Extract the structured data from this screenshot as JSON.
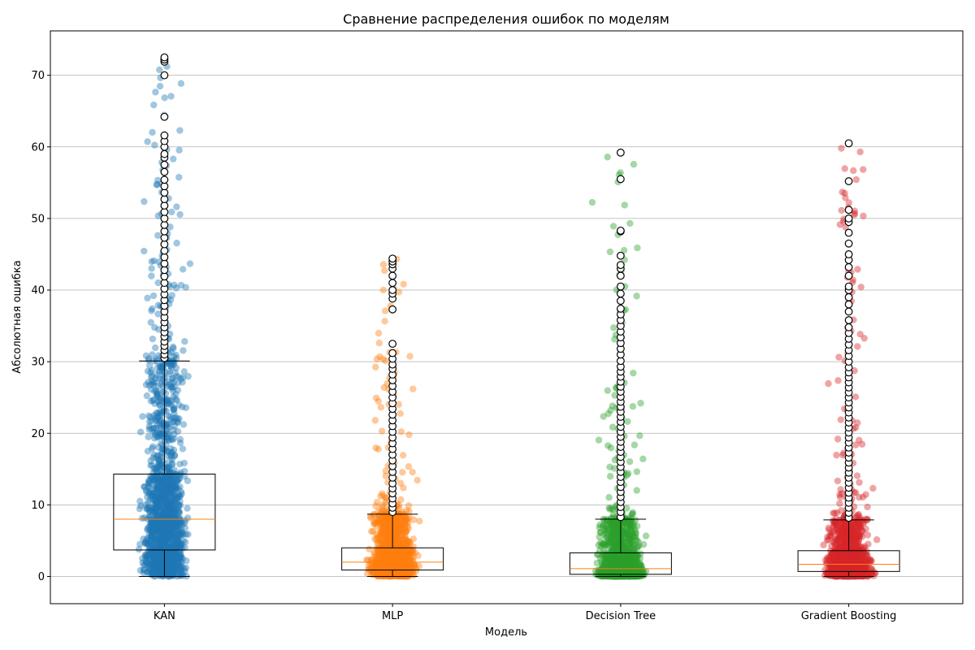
{
  "chart_data": {
    "type": "box",
    "title": "Сравнение распределения ошибок по моделям",
    "xlabel": "Модель",
    "ylabel": "Абсолютная ошибка",
    "ylim": [
      -3.8,
      76.2
    ],
    "yticks": [
      0,
      10,
      20,
      30,
      40,
      50,
      60,
      70
    ],
    "grid": "y",
    "categories": [
      "KAN",
      "MLP",
      "Decision Tree",
      "Gradient Boosting"
    ],
    "colors": [
      "#1f77b4",
      "#ff7f0e",
      "#2ca02c",
      "#d62728"
    ],
    "median_color": "#ff7f0e",
    "boxes": [
      {
        "name": "KAN",
        "whisker_low": 0,
        "q1": 3.7,
        "median": 8.0,
        "q3": 14.3,
        "whisker_high": 30.1,
        "scatter_max": 72.5,
        "outliers": [
          30.5,
          31.0,
          31.6,
          32.2,
          32.8,
          33.5,
          34.1,
          34.8,
          35.5,
          36.2,
          37.0,
          37.8,
          38.6,
          39.4,
          40.2,
          41.0,
          41.9,
          42.8,
          43.7,
          44.6,
          45.5,
          46.4,
          47.3,
          48.2,
          49.1,
          50.0,
          50.9,
          51.8,
          52.7,
          53.6,
          54.5,
          55.4,
          56.5,
          57.5,
          58.5,
          59.0,
          60.0,
          60.8,
          61.6,
          64.2,
          70.0,
          71.9,
          72.2,
          72.5
        ]
      },
      {
        "name": "MLP",
        "whisker_low": 0,
        "q1": 0.9,
        "median": 2.0,
        "q3": 4.0,
        "whisker_high": 8.7,
        "scatter_max": 44.4,
        "outliers": [
          9.0,
          9.6,
          10.2,
          10.9,
          11.6,
          12.3,
          13.0,
          13.8,
          14.6,
          15.4,
          16.2,
          17.0,
          17.8,
          18.6,
          19.4,
          20.2,
          21.0,
          21.8,
          22.6,
          23.4,
          24.2,
          25.0,
          25.8,
          26.6,
          27.4,
          28.2,
          29.0,
          29.6,
          30.4,
          31.2,
          32.5,
          37.3,
          38.8,
          39.5,
          40.0,
          41.0,
          42.0,
          43.0,
          43.6,
          44.0,
          44.4
        ]
      },
      {
        "name": "Decision Tree",
        "whisker_low": 0,
        "q1": 0.3,
        "median": 1.1,
        "q3": 3.3,
        "whisker_high": 8.0,
        "scatter_max": 59.2,
        "outliers": [
          8.3,
          9.0,
          9.7,
          10.4,
          11.1,
          11.8,
          12.5,
          13.2,
          13.9,
          14.6,
          15.3,
          16.0,
          16.7,
          17.4,
          18.1,
          18.8,
          19.5,
          20.2,
          20.9,
          21.6,
          22.3,
          23.0,
          23.7,
          24.4,
          25.1,
          25.8,
          26.5,
          27.2,
          27.9,
          28.6,
          29.3,
          30.1,
          31.0,
          31.8,
          32.6,
          33.4,
          34.2,
          35.0,
          35.8,
          36.6,
          37.4,
          38.5,
          39.5,
          40.5,
          42.0,
          43.0,
          43.5,
          44.8,
          48.2,
          48.3,
          55.5,
          59.2
        ]
      },
      {
        "name": "Gradient Boosting",
        "whisker_low": 0,
        "q1": 0.7,
        "median": 1.7,
        "q3": 3.6,
        "whisker_high": 7.9,
        "scatter_max": 60.5,
        "outliers": [
          8.2,
          8.9,
          9.6,
          10.3,
          11.0,
          11.7,
          12.4,
          13.1,
          13.8,
          14.5,
          15.2,
          15.9,
          16.6,
          17.3,
          18.0,
          18.7,
          19.4,
          20.1,
          20.8,
          21.5,
          22.2,
          22.9,
          23.6,
          24.3,
          25.0,
          25.7,
          26.4,
          27.1,
          27.8,
          28.5,
          29.2,
          30.0,
          30.8,
          31.6,
          32.4,
          33.2,
          34.0,
          34.8,
          35.8,
          37.0,
          38.0,
          39.0,
          40.0,
          40.5,
          42.0,
          43.2,
          44.2,
          45.0,
          46.5,
          48.0,
          49.5,
          50.0,
          51.2,
          55.2,
          60.5
        ]
      }
    ]
  }
}
